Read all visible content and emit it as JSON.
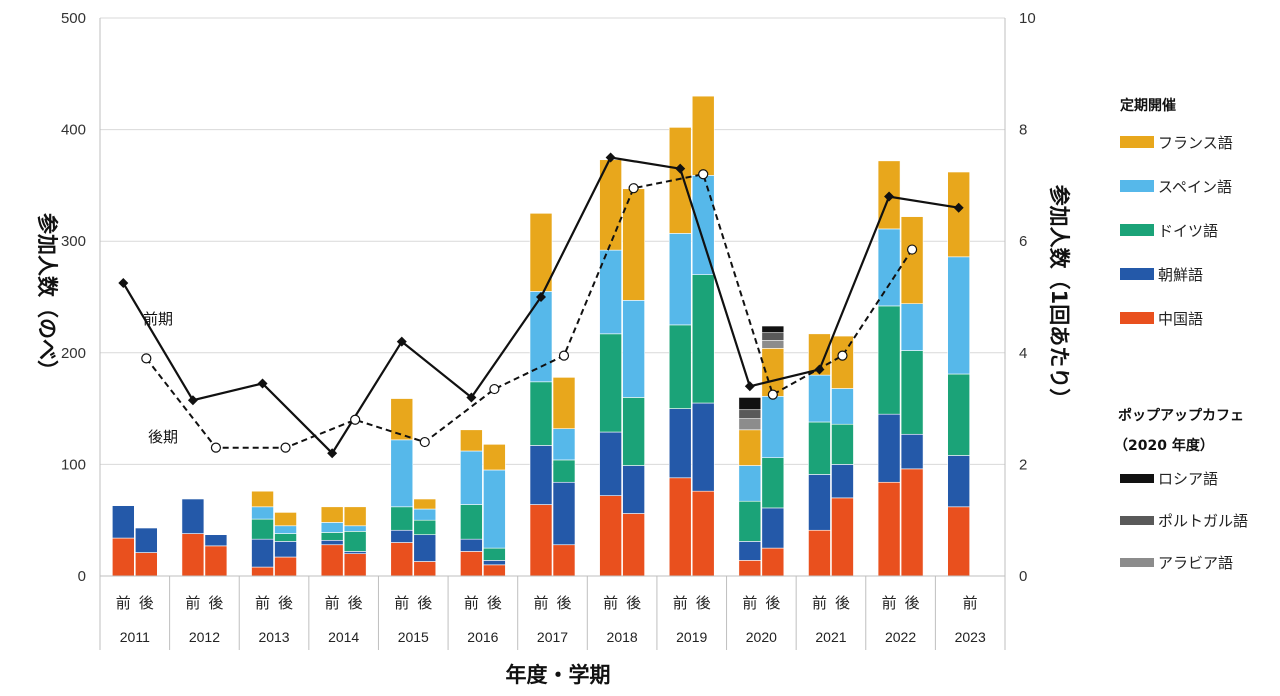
{
  "chart_data": {
    "type": "bar",
    "xlabel": "年度・学期",
    "ylabel_left": "参加人数（のべ）",
    "ylabel_right": "参加人数（1回あたり）",
    "ylim_left": [
      0,
      500
    ],
    "ylim_right": [
      0,
      10
    ],
    "left_ticks": [
      "0",
      "100",
      "200",
      "300",
      "400",
      "500"
    ],
    "right_ticks": [
      "0",
      "2",
      "4",
      "6",
      "8",
      "10"
    ],
    "years": [
      "2011",
      "2012",
      "2013",
      "2014",
      "2015",
      "2016",
      "2017",
      "2018",
      "2019",
      "2020",
      "2021",
      "2022",
      "2023"
    ],
    "semester_labels": {
      "first": "前",
      "second": "後"
    },
    "bars": [
      {
        "year": "2011",
        "sem": "first",
        "stack": [
          34,
          29,
          0,
          0,
          0
        ]
      },
      {
        "year": "2011",
        "sem": "second",
        "stack": [
          21,
          22,
          0,
          0,
          0
        ]
      },
      {
        "year": "2012",
        "sem": "first",
        "stack": [
          38,
          31,
          0,
          0,
          0
        ]
      },
      {
        "year": "2012",
        "sem": "second",
        "stack": [
          27,
          10,
          0,
          0,
          0
        ]
      },
      {
        "year": "2013",
        "sem": "first",
        "stack": [
          8,
          25,
          18,
          11,
          14
        ]
      },
      {
        "year": "2013",
        "sem": "second",
        "stack": [
          17,
          14,
          7,
          7,
          12
        ]
      },
      {
        "year": "2014",
        "sem": "first",
        "stack": [
          28,
          4,
          7,
          9,
          14
        ]
      },
      {
        "year": "2014",
        "sem": "second",
        "stack": [
          20,
          2,
          18,
          5,
          17
        ]
      },
      {
        "year": "2015",
        "sem": "first",
        "stack": [
          30,
          11,
          21,
          60,
          37
        ]
      },
      {
        "year": "2015",
        "sem": "second",
        "stack": [
          13,
          24,
          13,
          10,
          9
        ]
      },
      {
        "year": "2016",
        "sem": "first",
        "stack": [
          22,
          11,
          31,
          48,
          19
        ]
      },
      {
        "year": "2016",
        "sem": "second",
        "stack": [
          10,
          4,
          11,
          70,
          23
        ]
      },
      {
        "year": "2017",
        "sem": "first",
        "stack": [
          64,
          53,
          57,
          81,
          70
        ]
      },
      {
        "year": "2017",
        "sem": "second",
        "stack": [
          28,
          56,
          20,
          28,
          46
        ]
      },
      {
        "year": "2018",
        "sem": "first",
        "stack": [
          72,
          57,
          88,
          75,
          81
        ]
      },
      {
        "year": "2018",
        "sem": "second",
        "stack": [
          56,
          43,
          61,
          87,
          100
        ]
      },
      {
        "year": "2019",
        "sem": "first",
        "stack": [
          88,
          62,
          75,
          82,
          95
        ]
      },
      {
        "year": "2019",
        "sem": "second",
        "stack": [
          76,
          79,
          115,
          89,
          71
        ]
      },
      {
        "year": "2020",
        "sem": "first",
        "stack": [
          14,
          17,
          36,
          32,
          32
        ],
        "popup": [
          10,
          8,
          11
        ]
      },
      {
        "year": "2020",
        "sem": "second",
        "stack": [
          25,
          36,
          45,
          55,
          43
        ],
        "popup": [
          7,
          7,
          6
        ]
      },
      {
        "year": "2021",
        "sem": "first",
        "stack": [
          41,
          50,
          47,
          42,
          37
        ]
      },
      {
        "year": "2021",
        "sem": "second",
        "stack": [
          70,
          30,
          36,
          32,
          47
        ]
      },
      {
        "year": "2022",
        "sem": "first",
        "stack": [
          84,
          61,
          97,
          69,
          61
        ]
      },
      {
        "year": "2022",
        "sem": "second",
        "stack": [
          96,
          31,
          75,
          42,
          78
        ]
      },
      {
        "year": "2023",
        "sem": "first",
        "stack": [
          62,
          46,
          73,
          105,
          76
        ]
      }
    ],
    "line_first": [
      5.25,
      3.15,
      3.45,
      2.2,
      4.2,
      3.2,
      5.0,
      7.5,
      7.3,
      3.4,
      3.7,
      6.8,
      6.6
    ],
    "line_second": [
      3.9,
      2.3,
      2.3,
      2.8,
      2.4,
      3.35,
      3.95,
      6.95,
      7.2,
      3.25,
      3.95,
      5.85,
      null
    ],
    "line_first_label": "前期",
    "line_second_label": "後期",
    "legend": {
      "regular_title": "定期開催",
      "regular": [
        {
          "name": "フランス語",
          "color": "#E8A71C"
        },
        {
          "name": "スペイン語",
          "color": "#56B8EA"
        },
        {
          "name": "ドイツ語",
          "color": "#1BA378"
        },
        {
          "name": "朝鮮語",
          "color": "#2459A9"
        },
        {
          "name": "中国語",
          "color": "#E9501E"
        }
      ],
      "popup_title_1": "ポップアップカフェ",
      "popup_title_2": "（2020 年度）",
      "popup": [
        {
          "name": "ロシア語",
          "color": "#111111"
        },
        {
          "name": "ポルトガル語",
          "color": "#595959"
        },
        {
          "name": "アラビア語",
          "color": "#8C8C8C"
        }
      ]
    },
    "stack_order": [
      "中国語",
      "朝鮮語",
      "ドイツ語",
      "スペイン語",
      "フランス語"
    ],
    "popup_order": [
      "アラビア語",
      "ポルトガル語",
      "ロシア語"
    ],
    "grid": true
  }
}
